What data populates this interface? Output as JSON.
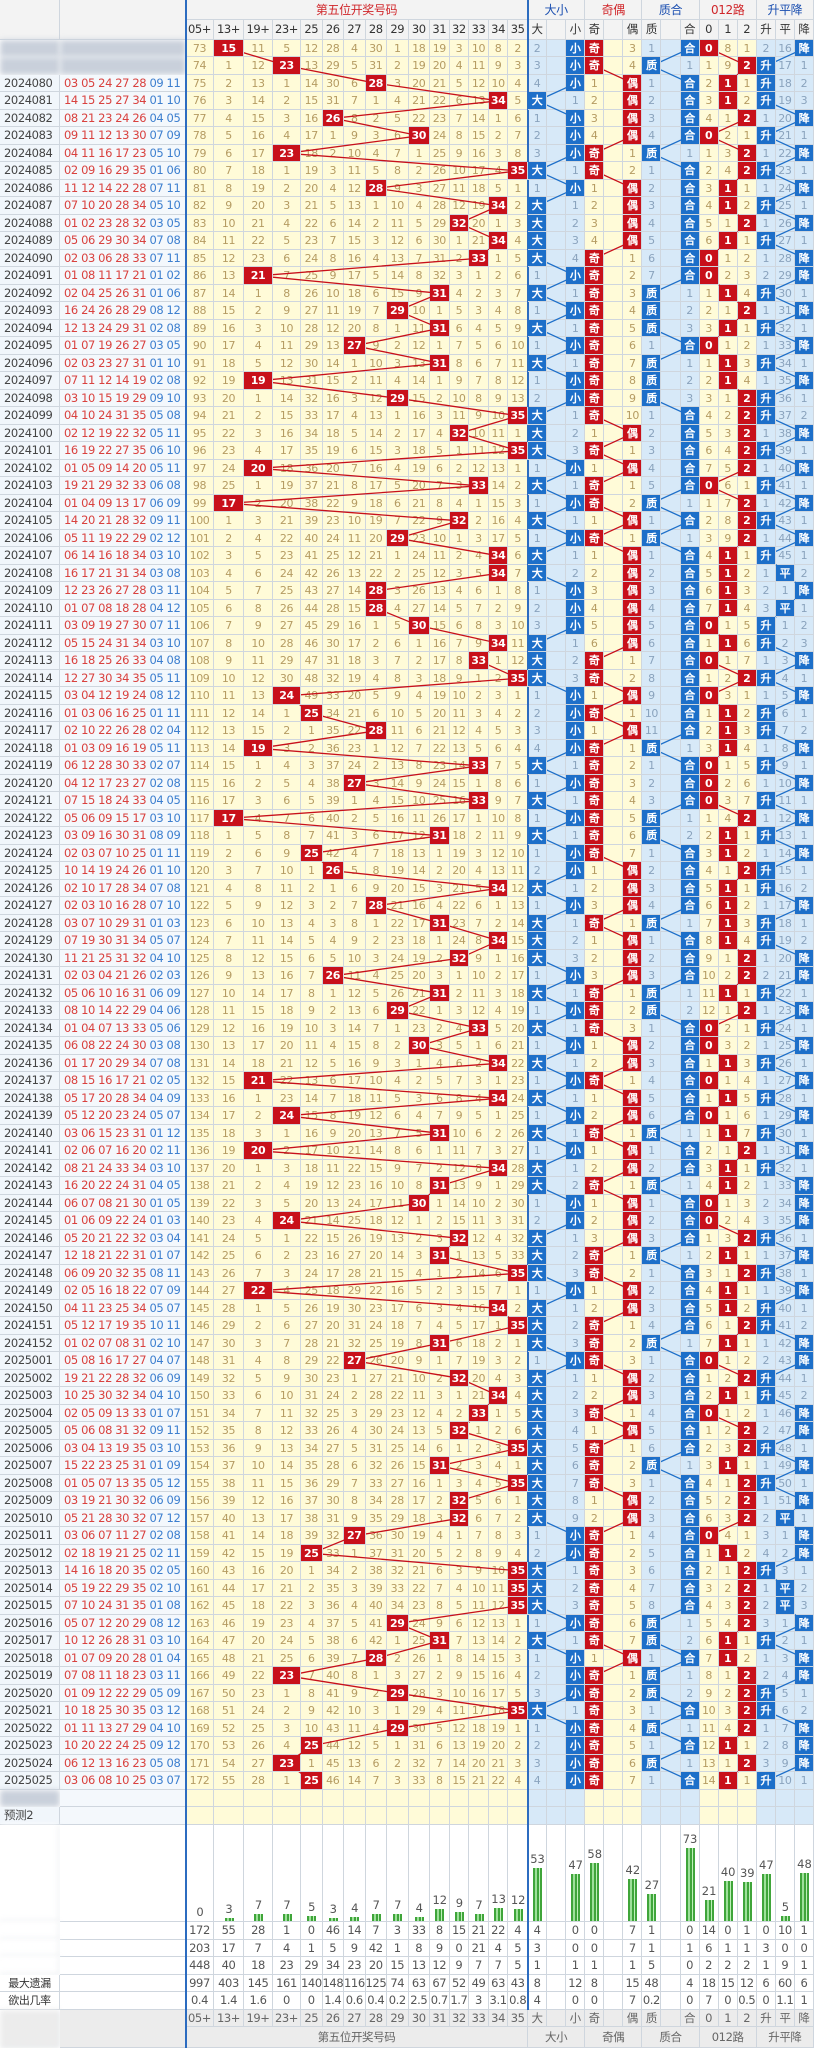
{
  "header": {
    "groups": {
      "numbers": "第五位开奖号码",
      "size": "大小",
      "parity": "奇偶",
      "prime": "质合",
      "mod3": "012路",
      "trend": "升平降"
    },
    "columns": [
      "05+",
      "13+",
      "19+",
      "23+",
      "25",
      "26",
      "27",
      "28",
      "29",
      "30",
      "31",
      "32",
      "33",
      "34",
      "35",
      "大",
      "",
      "小",
      "奇",
      "",
      "偶",
      "质",
      "",
      "合",
      "0",
      "1",
      "2",
      "升",
      "平",
      "降"
    ]
  },
  "colors": {
    "hit_red": "#c8101a",
    "hit_blue": "#1d6fc9",
    "number_area": "#fffbd8",
    "indicator_blue": "#d7e9f8",
    "front_number": "#d9413e",
    "back_number": "#3d7fcf",
    "bar_green": "#3fa53a",
    "group_red": "#d0262a",
    "group_blue": "#1b4fb0"
  },
  "seed": {
    "number_omissions": [
      73,
      null,
      11,
      5,
      12,
      28,
      4,
      30,
      1,
      18,
      19,
      3,
      10,
      8,
      2
    ],
    "indicator_omissions": [
      2,
      null,
      null,
      null,
      null,
      3,
      1,
      null,
      null,
      null,
      8,
      1,
      2,
      16,
      null
    ],
    "first_trend": "降"
  },
  "rows": [
    {
      "period": "",
      "draw": "",
      "fifth": 15
    },
    {
      "period": "",
      "draw": "",
      "fifth": 23
    },
    {
      "period": "2024080",
      "draw": "03 05 24 27 28 09 11",
      "fifth": 28
    },
    {
      "period": "2024081",
      "draw": "14 15 25 27 34 01 10",
      "fifth": 34
    },
    {
      "period": "2024082",
      "draw": "08 21 23 24 26 04 05",
      "fifth": 26
    },
    {
      "period": "2024083",
      "draw": "09 11 12 13 30 07 09",
      "fifth": 30
    },
    {
      "period": "2024084",
      "draw": "04 11 16 17 23 05 10",
      "fifth": 23
    },
    {
      "period": "2024085",
      "draw": "02 09 16 29 35 01 06",
      "fifth": 35
    },
    {
      "period": "2024086",
      "draw": "11 12 14 22 28 07 11",
      "fifth": 28
    },
    {
      "period": "2024087",
      "draw": "07 10 20 28 34 05 10",
      "fifth": 34
    },
    {
      "period": "2024088",
      "draw": "01 02 23 28 32 03 05",
      "fifth": 32
    },
    {
      "period": "2024089",
      "draw": "05 06 29 30 34 07 08",
      "fifth": 34
    },
    {
      "period": "2024090",
      "draw": "02 03 06 28 33 07 11",
      "fifth": 33
    },
    {
      "period": "2024091",
      "draw": "01 08 11 17 21 01 02",
      "fifth": 21
    },
    {
      "period": "2024092",
      "draw": "02 04 25 26 31 01 06",
      "fifth": 31
    },
    {
      "period": "2024093",
      "draw": "16 24 26 28 29 08 12",
      "fifth": 29
    },
    {
      "period": "2024094",
      "draw": "12 13 24 29 31 02 08",
      "fifth": 31
    },
    {
      "period": "2024095",
      "draw": "01 07 19 26 27 03 05",
      "fifth": 27
    },
    {
      "period": "2024096",
      "draw": "02 03 23 27 31 01 10",
      "fifth": 31
    },
    {
      "period": "2024097",
      "draw": "07 11 12 14 19 02 08",
      "fifth": 19
    },
    {
      "period": "2024098",
      "draw": "03 10 15 19 29 09 10",
      "fifth": 29
    },
    {
      "period": "2024099",
      "draw": "04 10 24 31 35 05 08",
      "fifth": 35
    },
    {
      "period": "2024100",
      "draw": "02 12 19 22 32 05 11",
      "fifth": 32
    },
    {
      "period": "2024101",
      "draw": "16 19 22 27 35 06 10",
      "fifth": 35
    },
    {
      "period": "2024102",
      "draw": "01 05 09 14 20 05 11",
      "fifth": 20
    },
    {
      "period": "2024103",
      "draw": "19 21 29 32 33 06 08",
      "fifth": 33
    },
    {
      "period": "2024104",
      "draw": "01 04 09 13 17 06 09",
      "fifth": 17
    },
    {
      "period": "2024105",
      "draw": "14 20 21 28 32 09 11",
      "fifth": 32
    },
    {
      "period": "2024106",
      "draw": "05 11 19 22 29 02 12",
      "fifth": 29
    },
    {
      "period": "2024107",
      "draw": "06 14 16 18 34 03 10",
      "fifth": 34
    },
    {
      "period": "2024108",
      "draw": "16 17 21 31 34 03 08",
      "fifth": 34
    },
    {
      "period": "2024109",
      "draw": "12 23 26 27 28 03 11",
      "fifth": 28
    },
    {
      "period": "2024110",
      "draw": "01 07 08 18 28 04 12",
      "fifth": 28
    },
    {
      "period": "2024111",
      "draw": "03 09 19 27 30 07 11",
      "fifth": 30
    },
    {
      "period": "2024112",
      "draw": "05 15 24 31 34 03 10",
      "fifth": 34
    },
    {
      "period": "2024113",
      "draw": "16 18 25 26 33 04 08",
      "fifth": 33
    },
    {
      "period": "2024114",
      "draw": "12 27 30 34 35 05 11",
      "fifth": 35
    },
    {
      "period": "2024115",
      "draw": "03 04 12 19 24 08 12",
      "fifth": 24
    },
    {
      "period": "2024116",
      "draw": "01 03 06 16 25 01 11",
      "fifth": 25
    },
    {
      "period": "2024117",
      "draw": "02 10 22 26 28 02 04",
      "fifth": 28
    },
    {
      "period": "2024118",
      "draw": "01 03 09 16 19 05 11",
      "fifth": 19
    },
    {
      "period": "2024119",
      "draw": "06 12 28 30 33 02 07",
      "fifth": 33
    },
    {
      "period": "2024120",
      "draw": "04 12 17 23 27 02 08",
      "fifth": 27
    },
    {
      "period": "2024121",
      "draw": "07 15 18 24 33 04 05",
      "fifth": 33
    },
    {
      "period": "2024122",
      "draw": "05 06 09 15 17 03 10",
      "fifth": 17
    },
    {
      "period": "2024123",
      "draw": "03 09 16 30 31 08 09",
      "fifth": 31
    },
    {
      "period": "2024124",
      "draw": "02 03 07 10 25 01 11",
      "fifth": 25
    },
    {
      "period": "2024125",
      "draw": "10 14 19 24 26 01 10",
      "fifth": 26
    },
    {
      "period": "2024126",
      "draw": "02 10 17 28 34 07 08",
      "fifth": 34
    },
    {
      "period": "2024127",
      "draw": "02 03 10 16 28 07 10",
      "fifth": 28
    },
    {
      "period": "2024128",
      "draw": "03 07 10 29 31 01 03",
      "fifth": 31
    },
    {
      "period": "2024129",
      "draw": "07 19 30 31 34 05 07",
      "fifth": 34
    },
    {
      "period": "2024130",
      "draw": "11 21 25 31 32 04 10",
      "fifth": 32
    },
    {
      "period": "2024131",
      "draw": "02 03 04 21 26 02 03",
      "fifth": 26
    },
    {
      "period": "2024132",
      "draw": "05 06 10 16 31 06 09",
      "fifth": 31
    },
    {
      "period": "2024133",
      "draw": "08 10 14 22 29 04 06",
      "fifth": 29
    },
    {
      "period": "2024134",
      "draw": "01 04 07 13 33 05 06",
      "fifth": 33
    },
    {
      "period": "2024135",
      "draw": "06 08 22 24 30 03 08",
      "fifth": 30
    },
    {
      "period": "2024136",
      "draw": "01 17 20 29 34 07 08",
      "fifth": 34
    },
    {
      "period": "2024137",
      "draw": "08 15 16 17 21 02 05",
      "fifth": 21
    },
    {
      "period": "2024138",
      "draw": "05 17 20 28 34 04 09",
      "fifth": 34
    },
    {
      "period": "2024139",
      "draw": "05 12 20 23 24 05 07",
      "fifth": 24
    },
    {
      "period": "2024140",
      "draw": "03 06 15 23 31 01 12",
      "fifth": 31
    },
    {
      "period": "2024141",
      "draw": "02 06 07 16 20 02 11",
      "fifth": 20
    },
    {
      "period": "2024142",
      "draw": "08 21 24 33 34 03 10",
      "fifth": 34
    },
    {
      "period": "2024143",
      "draw": "16 20 22 24 31 04 05",
      "fifth": 31
    },
    {
      "period": "2024144",
      "draw": "06 07 08 21 30 01 05",
      "fifth": 30
    },
    {
      "period": "2024145",
      "draw": "01 06 09 22 24 01 03",
      "fifth": 24
    },
    {
      "period": "2024146",
      "draw": "05 20 21 22 32 03 04",
      "fifth": 32
    },
    {
      "period": "2024147",
      "draw": "12 18 21 22 31 01 07",
      "fifth": 31
    },
    {
      "period": "2024148",
      "draw": "06 09 20 32 35 08 11",
      "fifth": 35
    },
    {
      "period": "2024149",
      "draw": "02 05 16 18 22 07 09",
      "fifth": 22
    },
    {
      "period": "2024150",
      "draw": "04 11 23 25 34 05 07",
      "fifth": 34
    },
    {
      "period": "2024151",
      "draw": "05 12 17 19 35 10 11",
      "fifth": 35
    },
    {
      "period": "2024152",
      "draw": "01 02 07 08 31 02 10",
      "fifth": 31
    },
    {
      "period": "2025001",
      "draw": "05 08 16 17 27 04 07",
      "fifth": 27
    },
    {
      "period": "2025002",
      "draw": "19 21 22 28 32 06 09",
      "fifth": 32
    },
    {
      "period": "2025003",
      "draw": "10 25 30 32 34 04 10",
      "fifth": 34
    },
    {
      "period": "2025004",
      "draw": "02 05 09 13 33 01 07",
      "fifth": 33
    },
    {
      "period": "2025005",
      "draw": "05 06 08 31 32 09 11",
      "fifth": 32
    },
    {
      "period": "2025006",
      "draw": "03 04 13 19 35 03 10",
      "fifth": 35
    },
    {
      "period": "2025007",
      "draw": "15 22 23 25 31 01 09",
      "fifth": 31
    },
    {
      "period": "2025008",
      "draw": "01 05 07 13 35 05 12",
      "fifth": 35
    },
    {
      "period": "2025009",
      "draw": "03 19 21 30 32 06 09",
      "fifth": 32
    },
    {
      "period": "2025010",
      "draw": "05 21 28 30 32 07 12",
      "fifth": 32
    },
    {
      "period": "2025011",
      "draw": "03 06 07 11 27 02 08",
      "fifth": 27
    },
    {
      "period": "2025012",
      "draw": "02 18 19 21 25 02 11",
      "fifth": 25
    },
    {
      "period": "2025013",
      "draw": "14 16 18 20 35 02 05",
      "fifth": 35
    },
    {
      "period": "2025014",
      "draw": "05 19 22 29 35 02 10",
      "fifth": 35
    },
    {
      "period": "2025015",
      "draw": "07 10 24 31 35 01 08",
      "fifth": 35
    },
    {
      "period": "2025016",
      "draw": "05 07 12 20 29 08 12",
      "fifth": 29
    },
    {
      "period": "2025017",
      "draw": "10 12 26 28 31 03 10",
      "fifth": 31
    },
    {
      "period": "2025018",
      "draw": "01 07 09 20 28 01 04",
      "fifth": 28
    },
    {
      "period": "2025019",
      "draw": "07 08 11 18 23 03 11",
      "fifth": 23
    },
    {
      "period": "2025020",
      "draw": "01 09 12 22 29 05 09",
      "fifth": 29
    },
    {
      "period": "2025021",
      "draw": "10 18 25 30 35 03 12",
      "fifth": 35
    },
    {
      "period": "2025022",
      "draw": "01 11 13 27 29 04 10",
      "fifth": 29
    },
    {
      "period": "2025023",
      "draw": "10 20 22 24 25 09 12",
      "fifth": 25
    },
    {
      "period": "2025024",
      "draw": "06 12 13 16 23 05 08",
      "fifth": 23
    },
    {
      "period": "2025025",
      "draw": "03 06 08 10 25 03 07",
      "fifth": 25
    }
  ],
  "prediction_rows": [
    "",
    "预测2"
  ],
  "appear_counts": [
    0,
    3,
    7,
    7,
    5,
    3,
    4,
    7,
    7,
    4,
    12,
    9,
    7,
    13,
    12,
    53,
    null,
    47,
    58,
    null,
    42,
    27,
    null,
    73,
    21,
    40,
    39,
    47,
    5,
    48
  ],
  "stats": [
    {
      "label": "",
      "values": [
        172,
        55,
        28,
        1,
        0,
        46,
        14,
        7,
        3,
        33,
        8,
        15,
        21,
        22,
        4,
        4,
        null,
        0,
        0,
        null,
        7,
        1,
        null,
        0,
        14,
        0,
        1,
        0,
        10,
        1
      ]
    },
    {
      "label": "",
      "values": [
        203,
        17,
        7,
        4,
        1,
        5,
        9,
        42,
        1,
        8,
        9,
        0,
        21,
        4,
        5,
        3,
        null,
        0,
        0,
        null,
        7,
        1,
        null,
        1,
        6,
        1,
        1,
        3,
        0,
        0
      ]
    },
    {
      "label": "",
      "values": [
        448,
        40,
        18,
        23,
        29,
        34,
        23,
        20,
        15,
        13,
        12,
        9,
        7,
        7,
        5,
        1,
        null,
        1,
        1,
        null,
        1,
        5,
        null,
        0,
        2,
        2,
        2,
        1,
        9,
        1
      ]
    },
    {
      "label": "最大遗漏",
      "values": [
        997,
        403,
        145,
        161,
        140,
        148,
        116,
        125,
        74,
        63,
        67,
        52,
        49,
        63,
        43,
        8,
        null,
        12,
        8,
        null,
        15,
        48,
        null,
        4,
        18,
        15,
        12,
        6,
        60,
        6
      ]
    },
    {
      "label": "欲出几率",
      "values": [
        "0.4",
        "1.4",
        "1.6",
        "0",
        "0",
        "1.4",
        "0.6",
        "0.4",
        "0.2",
        "2.5",
        "0.7",
        "1.7",
        "3",
        "3.1",
        "0.8",
        "4",
        null,
        "0",
        "0",
        null,
        "7",
        "0.2",
        null,
        "0",
        "7",
        "0",
        "0.5",
        "0",
        "1.1",
        "1"
      ]
    }
  ]
}
